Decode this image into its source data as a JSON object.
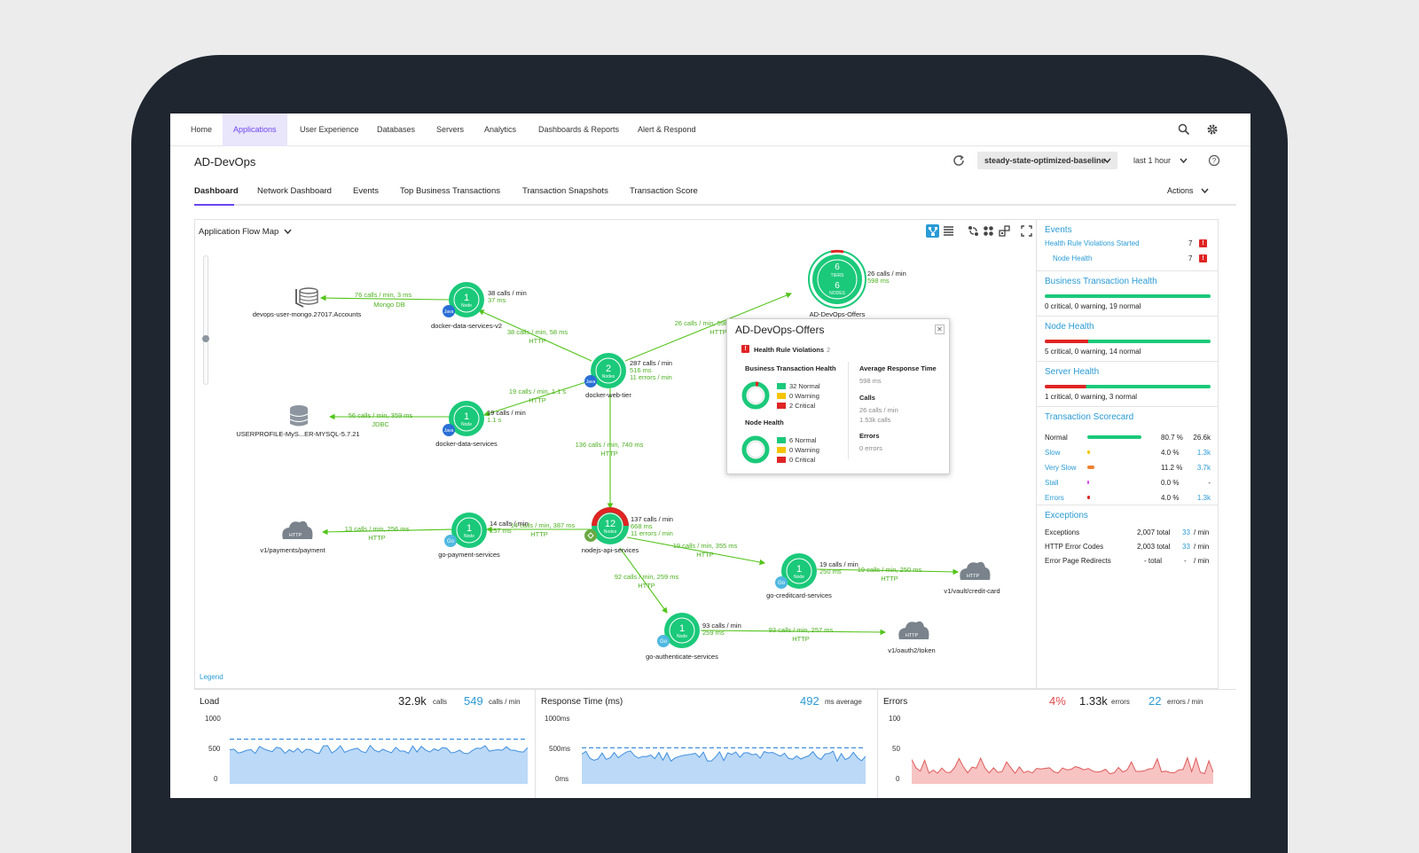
{
  "topnav": {
    "items": [
      {
        "label": "Home",
        "active": false
      },
      {
        "label": "Applications",
        "active": true
      },
      {
        "label": "User Experience",
        "active": false
      },
      {
        "label": "Databases",
        "active": false
      },
      {
        "label": "Servers",
        "active": false
      },
      {
        "label": "Analytics",
        "active": false
      },
      {
        "label": "Dashboards & Reports",
        "active": false
      },
      {
        "label": "Alert & Respond",
        "active": false
      }
    ]
  },
  "header": {
    "title": "AD-DevOps",
    "baseline": "steady-state-optimized-baseline",
    "timerange": "last 1 hour"
  },
  "tabs": {
    "items": [
      "Dashboard",
      "Network Dashboard",
      "Events",
      "Top Business Transactions",
      "Transaction Snapshots",
      "Transaction Score"
    ],
    "actions": "Actions"
  },
  "flowmap": {
    "title": "Application Flow Map",
    "legend": "Legend",
    "nodes": {
      "offers": {
        "n": "6",
        "tiers": "TIERS",
        "n2": "6",
        "nodes": "NODES",
        "name": "AD-DevOps-Offers",
        "m1": "26 calls / min",
        "m2": "598 ms"
      },
      "dsv2": {
        "n": "1",
        "u": "Node",
        "name": "docker-data-services-v2",
        "m1": "38 calls / min",
        "m2": "37 ms",
        "badge": "Java"
      },
      "web": {
        "n": "2",
        "u": "Nodes",
        "name": "docker-web-tier",
        "m1": "287 calls / min",
        "m2": "516 ms",
        "m3": "11 errors / min",
        "badge": "Java"
      },
      "ds": {
        "n": "1",
        "u": "Node",
        "name": "docker-data-services",
        "m1": "19 calls / min",
        "m2": "1.1 s",
        "badge": "Java"
      },
      "node": {
        "n": "12",
        "u": "Nodes",
        "name": "nodejs-api-services",
        "m1": "137 calls / min",
        "m2": "668 ms",
        "m3": "11 errors / min"
      },
      "pay": {
        "n": "1",
        "u": "Node",
        "name": "go-payment-services",
        "m1": "14 calls / min",
        "m2": "257 ms",
        "badge": "Go"
      },
      "cc": {
        "n": "1",
        "u": "Node",
        "name": "go-creditcard-services",
        "m1": "19 calls / min",
        "m2": "250 ms",
        "badge": "Go"
      },
      "auth": {
        "n": "1",
        "u": "Node",
        "name": "go-authenticate-services",
        "m1": "93 calls / min",
        "m2": "259 ms",
        "badge": "Go"
      },
      "mongo": {
        "name": "devops-user-mongo.27017.Accounts"
      },
      "mysql": {
        "name": "USERPROFILE-MyS...ER-MYSQL-5.7.21"
      },
      "h_pay": {
        "label": "HTTP",
        "name": "v1/payments/payment"
      },
      "h_cc": {
        "label": "HTTP",
        "name": "v1/vault/credit-card"
      },
      "h_auth": {
        "label": "HTTP",
        "name": "v1/oauth2/token"
      }
    },
    "edges": {
      "mongo": {
        "l1": "76 calls / min, 3 ms",
        "l2": "Mongo DB"
      },
      "web_dsv2": {
        "l1": "38 calls / min, 58 ms",
        "l2": "HTTP"
      },
      "web_offers": {
        "l1": "26 calls / min, 598 ms",
        "l2": "HTTP"
      },
      "mysql": {
        "l1": "56 calls / min, 359 ms",
        "l2": "JDBC"
      },
      "web_ds": {
        "l1": "19 calls / min, 1.1 s",
        "l2": "HTTP"
      },
      "web_node": {
        "l1": "136 calls / min, 740 ms",
        "l2": "HTTP"
      },
      "node_pay": {
        "l1": "14 calls / min, 387 ms",
        "l2": "HTTP"
      },
      "pay_h": {
        "l1": "13 calls / min, 256 ms",
        "l2": "HTTP"
      },
      "node_cc": {
        "l1": "19 calls / min, 355 ms",
        "l2": "HTTP"
      },
      "cc_h": {
        "l1": "19 calls / min, 250 ms",
        "l2": "HTTP"
      },
      "node_auth": {
        "l1": "92 calls / min, 259 ms",
        "l2": "HTTP"
      },
      "auth_h": {
        "l1": "93 calls / min, 257 ms",
        "l2": "HTTP"
      }
    }
  },
  "popup": {
    "title": "AD-DevOps-Offers",
    "hrv_label": "Health Rule Violations",
    "hrv_count": "2",
    "bth": "Business Transaction Health",
    "bth_normal": "32 Normal",
    "bth_warning": "0 Warning",
    "bth_critical": "2 Critical",
    "nh": "Node Health",
    "nh_normal": "6 Normal",
    "nh_warning": "0 Warning",
    "nh_critical": "0 Critical",
    "art": "Average Response Time",
    "art_val": "598 ms",
    "calls": "Calls",
    "calls_v1": "26 calls / min",
    "calls_v2": "1.53k calls",
    "errors": "Errors",
    "errors_v": "0 errors"
  },
  "side": {
    "events": {
      "title": "Events",
      "rows": [
        {
          "label": "Health Rule Violations Started",
          "count": "7"
        },
        {
          "label": "Node Health",
          "count": "7"
        }
      ]
    },
    "bt_health": {
      "title": "Business Transaction Health",
      "summary": "0 critical, 0 warning, 19 normal",
      "critical": 0,
      "warning": 0,
      "normal": 19
    },
    "node_health": {
      "title": "Node Health",
      "summary": "5 critical, 0 warning, 14 normal",
      "critical": 5,
      "warning": 0,
      "normal": 14
    },
    "server_health": {
      "title": "Server Health",
      "summary": "1 critical, 0 warning, 3 normal",
      "critical": 1,
      "warning": 0,
      "normal": 3
    },
    "scorecard": {
      "title": "Transaction Scorecard",
      "rows": [
        {
          "label": "Normal",
          "pct": "80.7 %",
          "count": "26.6k",
          "color": "#1bc97a",
          "value": 80.7
        },
        {
          "label": "Slow",
          "pct": "4.0 %",
          "count": "1.3k",
          "color": "#f5c400",
          "value": 4.0
        },
        {
          "label": "Very Slow",
          "pct": "11.2 %",
          "count": "3.7k",
          "color": "#f08030",
          "value": 11.2
        },
        {
          "label": "Stall",
          "pct": "0.0 %",
          "count": "-",
          "color": "#d946ef",
          "value": 0.0
        },
        {
          "label": "Errors",
          "pct": "4.0 %",
          "count": "1.3k",
          "color": "#e02424",
          "value": 4.0
        }
      ]
    },
    "exceptions": {
      "title": "Exceptions",
      "rows": [
        {
          "label": "Exceptions",
          "total": "2,007 total",
          "rate": "33",
          "unit": "/ min"
        },
        {
          "label": "HTTP Error Codes",
          "total": "2,003 total",
          "rate": "33",
          "unit": "/ min"
        },
        {
          "label": "Error Page Redirects",
          "total": "- total",
          "rate": "-",
          "unit": "/ min"
        }
      ]
    }
  },
  "bottom": {
    "load": {
      "title": "Load",
      "v1": "32.9k",
      "u1": "calls",
      "v2": "549",
      "u2": "calls / min",
      "y": [
        "1000",
        "500",
        "0"
      ]
    },
    "resp": {
      "title": "Response Time (ms)",
      "v1": "492",
      "u1": "ms average",
      "y": [
        "1000ms",
        "500ms",
        "0ms"
      ]
    },
    "errors": {
      "title": "Errors",
      "v0": "4%",
      "v1": "1.33k",
      "u1": "errors",
      "v2": "22",
      "u2": "errors / min",
      "y": [
        "100",
        "50",
        "0"
      ]
    }
  },
  "colors": {
    "accent": "#6b45ee",
    "healthy": "#1bc97a",
    "critical": "#e02424",
    "warning": "#f5c400",
    "link": "#2a9bd6",
    "edge": "#52c41a"
  }
}
